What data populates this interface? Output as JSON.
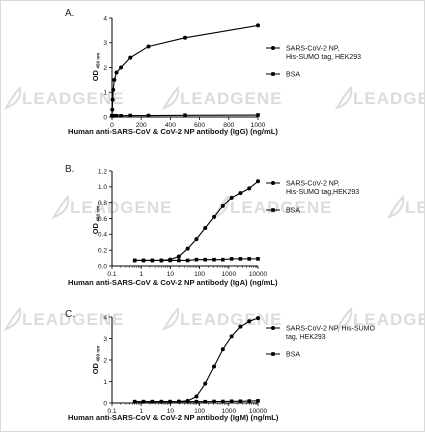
{
  "watermark_text": "LEADGENE",
  "chart_data": [
    {
      "type": "line",
      "panel_label": "A.",
      "xscale": "linear",
      "xlim": [
        0,
        1000
      ],
      "ylim": [
        0,
        4
      ],
      "xticks": [
        0,
        200,
        400,
        600,
        800,
        1000
      ],
      "yticks": [
        0,
        1,
        2,
        3,
        4
      ],
      "xlabel": "Human anti-SARS-CoV & CoV-2 NP antibody (IgG) (ng/mL)",
      "ylabel_main": "OD",
      "ylabel_sub": "450 nm",
      "legend_position": "right",
      "series": [
        {
          "name": "SARS-CoV-2 NP, His-SUMO tag, HEK293",
          "name_lines": [
            "SARS-CoV-2 NP,",
            "His-SUMO tag, HEK293"
          ],
          "marker": "circle",
          "x": [
            0,
            2,
            4,
            8,
            16,
            31,
            62,
            125,
            250,
            500,
            1000
          ],
          "y": [
            0.05,
            0.3,
            0.7,
            1.1,
            1.5,
            1.8,
            2.0,
            2.4,
            2.85,
            3.2,
            3.7
          ]
        },
        {
          "name": "BSA",
          "name_lines": [
            "BSA"
          ],
          "marker": "square",
          "x": [
            0,
            2,
            4,
            8,
            16,
            31,
            62,
            125,
            250,
            500,
            1000
          ],
          "y": [
            0.05,
            0.05,
            0.05,
            0.05,
            0.05,
            0.05,
            0.05,
            0.06,
            0.06,
            0.07,
            0.08
          ]
        }
      ]
    },
    {
      "type": "line",
      "panel_label": "B.",
      "xscale": "log",
      "xlim": [
        0.1,
        10000
      ],
      "ylim": [
        0,
        1.2
      ],
      "xticks": [
        0.1,
        1,
        10,
        100,
        1000,
        10000
      ],
      "xtick_labels": [
        "0.1",
        "1",
        "10",
        "100",
        "1000",
        "10000"
      ],
      "yticks": [
        0,
        0.2,
        0.4,
        0.6,
        0.8,
        1.0,
        1.2
      ],
      "ytick_labels": [
        "0.0",
        "0.2",
        "0.4",
        "0.6",
        "0.8",
        "1.0",
        "1.2"
      ],
      "xlabel": "Human anti-SARS-CoV & CoV-2 NP antibody (IgA) (ng/mL)",
      "ylabel_main": "OD",
      "ylabel_sub": "450 nm",
      "legend_position": "right",
      "series": [
        {
          "name": "SARS-CoV-2 NP, His-SUMO tag,HEK293",
          "name_lines": [
            "SARS-CoV-2 NP,",
            "His-SUMO tag,HEK293"
          ],
          "marker": "circle",
          "x": [
            0.6,
            1.2,
            2.4,
            4.9,
            9.8,
            19.5,
            39,
            78,
            156,
            312,
            625,
            1250,
            2500,
            5000,
            10000
          ],
          "y": [
            0.07,
            0.07,
            0.07,
            0.07,
            0.08,
            0.12,
            0.22,
            0.34,
            0.48,
            0.62,
            0.76,
            0.86,
            0.92,
            0.98,
            1.07
          ]
        },
        {
          "name": "BSA",
          "name_lines": [
            "BSA"
          ],
          "marker": "square",
          "x": [
            0.6,
            1.2,
            2.4,
            4.9,
            9.8,
            19.5,
            39,
            78,
            156,
            312,
            625,
            1250,
            2500,
            5000,
            10000
          ],
          "y": [
            0.07,
            0.07,
            0.07,
            0.07,
            0.07,
            0.07,
            0.07,
            0.08,
            0.08,
            0.08,
            0.08,
            0.09,
            0.09,
            0.09,
            0.09
          ]
        }
      ]
    },
    {
      "type": "line",
      "panel_label": "C.",
      "xscale": "log",
      "xlim": [
        0.1,
        10000
      ],
      "ylim": [
        0,
        4
      ],
      "xticks": [
        0.1,
        1,
        10,
        100,
        1000,
        10000
      ],
      "xtick_labels": [
        "0.1",
        "1",
        "10",
        "100",
        "1000",
        "10000"
      ],
      "yticks": [
        0,
        1,
        2,
        3,
        4
      ],
      "xlabel": "Human anti-SARS-CoV & CoV-2 NP antibody (IgM) (ng/mL)",
      "ylabel_main": "OD",
      "ylabel_sub": "450 nm",
      "legend_position": "right",
      "series": [
        {
          "name": "SARS-CoV-2 NP, His-SUMO tag, HEK293",
          "name_lines": [
            "SARS-CoV-2 NP, His-SUMO",
            "tag, HEK293"
          ],
          "marker": "circle",
          "x": [
            0.6,
            1.2,
            2.4,
            4.9,
            9.8,
            19.5,
            39,
            78,
            156,
            312,
            625,
            1250,
            2500,
            5000,
            10000
          ],
          "y": [
            0.06,
            0.06,
            0.06,
            0.06,
            0.06,
            0.07,
            0.1,
            0.3,
            0.9,
            1.7,
            2.5,
            3.1,
            3.55,
            3.8,
            3.95
          ]
        },
        {
          "name": "BSA",
          "name_lines": [
            "BSA"
          ],
          "marker": "square",
          "x": [
            0.6,
            1.2,
            2.4,
            4.9,
            9.8,
            19.5,
            39,
            78,
            156,
            312,
            625,
            1250,
            2500,
            5000,
            10000
          ],
          "y": [
            0.06,
            0.06,
            0.06,
            0.06,
            0.06,
            0.06,
            0.06,
            0.06,
            0.06,
            0.07,
            0.07,
            0.08,
            0.08,
            0.09,
            0.1
          ]
        }
      ]
    }
  ]
}
